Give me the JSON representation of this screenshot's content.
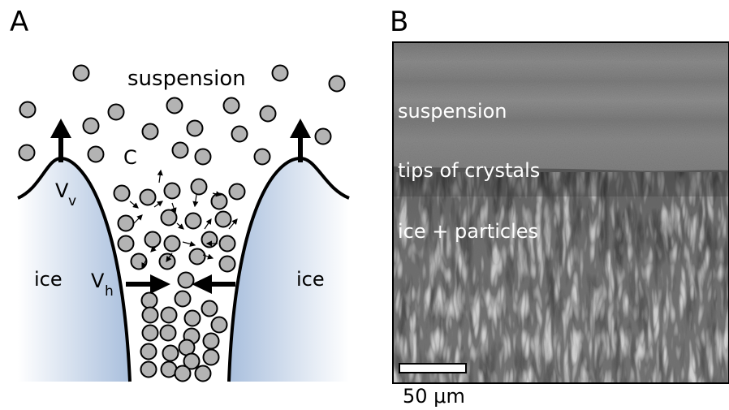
{
  "panel_a": {
    "letter": "A",
    "label_suspension": "suspension",
    "label_c": "C",
    "label_vv_main": "V",
    "label_vv_sub": "v",
    "label_vh_main": "V",
    "label_vh_sub": "h",
    "label_ice_left": "ice",
    "label_ice_right": "ice",
    "colors": {
      "particle_fill": "#b3b3b3",
      "ice_gradient": "#a9bfdd"
    }
  },
  "panel_b": {
    "letter": "B",
    "label_suspension": "suspension",
    "label_tips": "tips of crystals",
    "label_ice_particles": "ice + particles",
    "scale_bar_label": "50 μm"
  }
}
